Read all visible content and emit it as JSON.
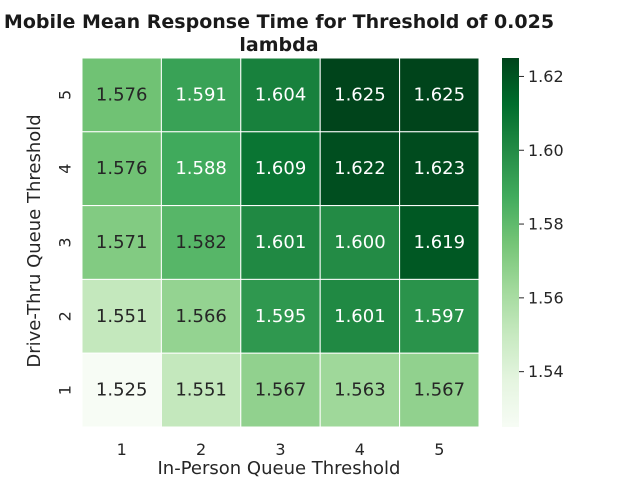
{
  "chart_data": {
    "type": "heatmap",
    "title": "Mobile Mean Response Time for Threshold of 0.025",
    "subtitle": "lambda",
    "xlabel": "In-Person Queue Threshold",
    "ylabel": "Drive-Thru Queue Threshold",
    "x_categories": [
      "1",
      "2",
      "3",
      "4",
      "5"
    ],
    "y_categories": [
      "5",
      "4",
      "3",
      "2",
      "1"
    ],
    "values": [
      [
        1.576,
        1.591,
        1.604,
        1.625,
        1.625
      ],
      [
        1.576,
        1.588,
        1.609,
        1.622,
        1.623
      ],
      [
        1.571,
        1.582,
        1.601,
        1.6,
        1.619
      ],
      [
        1.551,
        1.566,
        1.595,
        1.601,
        1.597
      ],
      [
        1.525,
        1.551,
        1.567,
        1.563,
        1.567
      ]
    ],
    "cell_labels": [
      [
        "1.576",
        "1.591",
        "1.604",
        "1.625",
        "1.625"
      ],
      [
        "1.576",
        "1.588",
        "1.609",
        "1.622",
        "1.623"
      ],
      [
        "1.571",
        "1.582",
        "1.601",
        "1.600",
        "1.619"
      ],
      [
        "1.551",
        "1.566",
        "1.595",
        "1.601",
        "1.597"
      ],
      [
        "1.525",
        "1.551",
        "1.567",
        "1.563",
        "1.567"
      ]
    ],
    "colormap": "Greens",
    "color_range": [
      1.525,
      1.625
    ],
    "colorbar_ticks": [
      1.54,
      1.56,
      1.58,
      1.6,
      1.62
    ],
    "colorbar_tick_labels": [
      "1.54",
      "1.56",
      "1.58",
      "1.60",
      "1.62"
    ],
    "grid": false,
    "cell_border_color": "#ffffff",
    "annotation_colors": {
      "light_cell": "#262626",
      "dark_cell": "#ffffff"
    }
  }
}
